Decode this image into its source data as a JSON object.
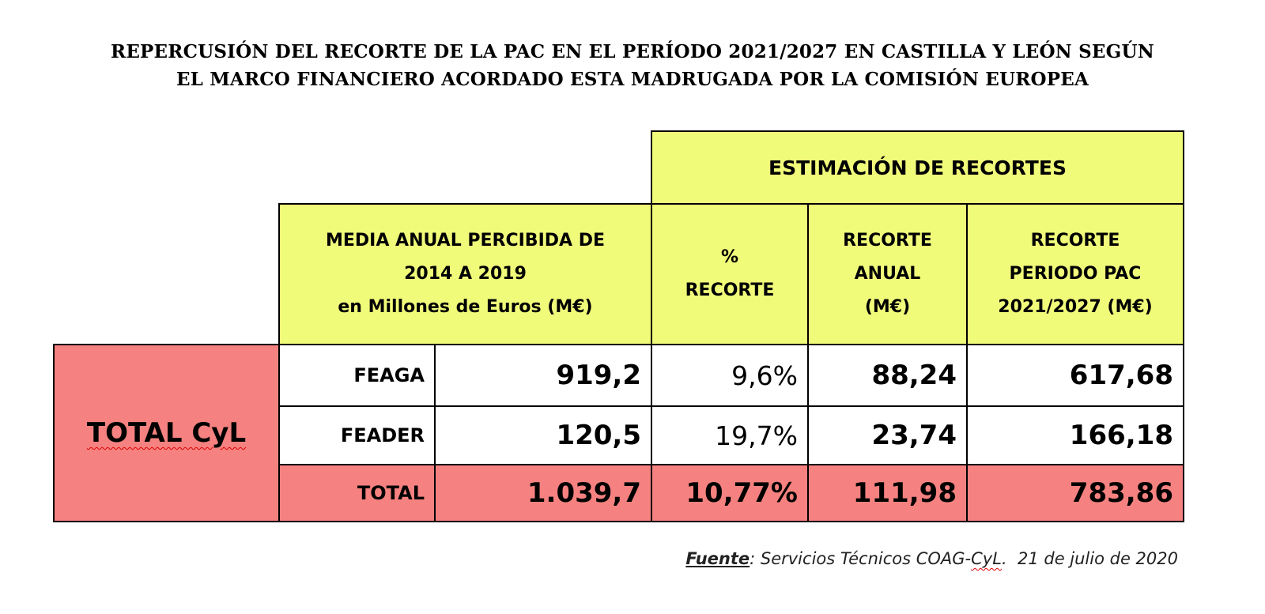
{
  "title": {
    "line1": "REPERCUSIÓN DEL RECORTE DE LA PAC EN EL PERÍODO 2021/2027 EN CASTILLA Y LEÓN SEGÚN",
    "line2": "EL MARCO FINANCIERO ACORDADO ESTA MADRUGADA POR LA COMISIÓN EUROPEA"
  },
  "headers": {
    "group": "ESTIMACIÓN DE RECORTES",
    "media_line1": "MEDIA ANUAL PERCIBIDA DE",
    "media_line2": "2014 A 2019",
    "media_line3": "en Millones de Euros (M€)",
    "pct_line1": "%",
    "pct_line2": "RECORTE",
    "anual_line1": "RECORTE",
    "anual_line2": "ANUAL",
    "anual_line3": "(M€)",
    "periodo_line1": "RECORTE",
    "periodo_line2": "PERIODO PAC",
    "periodo_line3": "2021/2027 (M€)"
  },
  "row_group_label": "TOTAL CyL",
  "colors": {
    "header_bg": "#f1fb7a",
    "total_bg": "#f58280",
    "body_bg": "#ffffff"
  },
  "chart_data": {
    "type": "table",
    "title": "REPERCUSIÓN DEL RECORTE DE LA PAC EN EL PERÍODO 2021/2027 EN CASTILLA Y LEÓN SEGÚN EL MARCO FINANCIERO ACORDADO ESTA MADRUGADA POR LA COMISIÓN EUROPEA",
    "columns": [
      "MEDIA ANUAL PERCIBIDA DE 2014 A 2019 en Millones de Euros (M€)",
      "% RECORTE",
      "RECORTE ANUAL (M€)",
      "RECORTE PERIODO PAC 2021/2027 (M€)"
    ],
    "rows": [
      {
        "label": "FEAGA",
        "media": "919,2",
        "pct": "9,6%",
        "anual": "88,24",
        "periodo": "617,68"
      },
      {
        "label": "FEADER",
        "media": "120,5",
        "pct": "19,7%",
        "anual": "23,74",
        "periodo": "166,18"
      },
      {
        "label": "TOTAL",
        "media": "1.039,7",
        "pct": "10,77%",
        "anual": "111,98",
        "periodo": "783,86"
      }
    ]
  },
  "source": {
    "lead": "Fuente",
    "text_a": ": Servicios Técnicos COAG-",
    "text_cyl": "CyL",
    "text_b": ".  21 de julio de 2020"
  }
}
